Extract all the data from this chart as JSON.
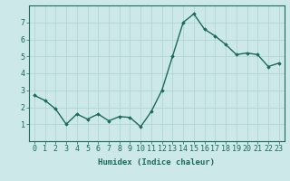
{
  "x": [
    0,
    1,
    2,
    3,
    4,
    5,
    6,
    7,
    8,
    9,
    10,
    11,
    12,
    13,
    14,
    15,
    16,
    17,
    18,
    19,
    20,
    21,
    22,
    23
  ],
  "y": [
    2.7,
    2.4,
    1.9,
    1.0,
    1.6,
    1.3,
    1.6,
    1.2,
    1.45,
    1.4,
    0.85,
    1.75,
    3.0,
    5.0,
    7.0,
    7.5,
    6.6,
    6.2,
    5.7,
    5.1,
    5.2,
    5.1,
    4.4,
    4.6
  ],
  "line_color": "#1a6b5a",
  "marker": "D",
  "marker_size": 1.8,
  "bg_color": "#cce8e8",
  "grid_color": "#b0d4d4",
  "xlabel": "Humidex (Indice chaleur)",
  "ylim": [
    0,
    8
  ],
  "xlim": [
    -0.5,
    23.5
  ],
  "yticks": [
    1,
    2,
    3,
    4,
    5,
    6,
    7
  ],
  "xticks": [
    0,
    1,
    2,
    3,
    4,
    5,
    6,
    7,
    8,
    9,
    10,
    11,
    12,
    13,
    14,
    15,
    16,
    17,
    18,
    19,
    20,
    21,
    22,
    23
  ],
  "xlabel_fontsize": 6.5,
  "tick_fontsize": 6.0,
  "line_width": 1.0
}
